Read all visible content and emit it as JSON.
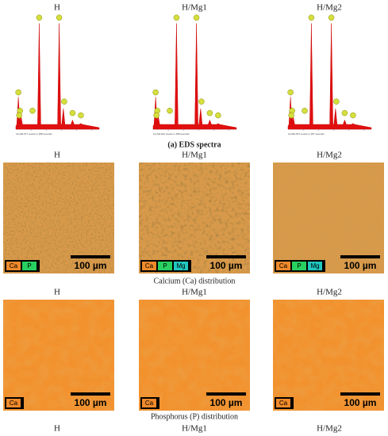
{
  "spectra": {
    "caption": "(a) EDS spectra",
    "panels": [
      {
        "title": "H",
        "counts": "13,228,077 counts in 458 seconds"
      },
      {
        "title": "H/Mg1",
        "counts": "13,242,812 counts in 458 seconds"
      },
      {
        "title": "H/Mg2",
        "counts": "13,562,972 counts in 457 seconds"
      }
    ]
  },
  "calcium": {
    "caption": "Calcium (Ca) distribution",
    "panels": [
      {
        "title": "H",
        "legend": [
          "Ca",
          "P"
        ],
        "scale_bar": "100 µm"
      },
      {
        "title": "H/Mg1",
        "legend": [
          "Ca",
          "P",
          "Mg"
        ],
        "scale_bar": "100 µm"
      },
      {
        "title": "H/Mg2",
        "legend": [
          "Ca",
          "P",
          "Mg"
        ],
        "scale_bar": "100 µm"
      }
    ]
  },
  "phosphorus": {
    "caption": "Phosphorus (P) distribution",
    "panels": [
      {
        "title": "H",
        "legend": [
          "Ca"
        ],
        "scale_bar": "100 µm"
      },
      {
        "title": "H/Mg1",
        "legend": [
          "Ca"
        ],
        "scale_bar": "100 µm"
      },
      {
        "title": "H/Mg2",
        "legend": [
          "Ca"
        ],
        "scale_bar": "100 µm"
      }
    ]
  },
  "bottom_titles": [
    "H",
    "H/Mg1",
    "H/Mg2"
  ]
}
